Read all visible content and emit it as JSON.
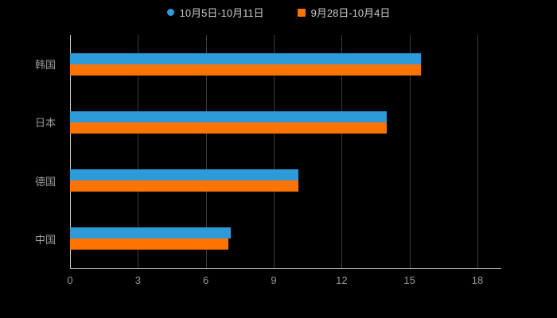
{
  "chart_data": {
    "type": "bar",
    "orientation": "horizontal",
    "title": "",
    "xlabel": "",
    "ylabel": "",
    "categories": [
      "韩国",
      "日本",
      "德国",
      "中国"
    ],
    "series": [
      {
        "name": "10月5日-10月11日",
        "color": "#2E9BD8",
        "marker": "circle",
        "values": [
          15.5,
          14,
          10.1,
          7.1
        ]
      },
      {
        "name": "9月28日-10月4日",
        "color": "#FF7300",
        "marker": "square",
        "values": [
          15.5,
          14,
          10.1,
          7.0
        ]
      }
    ],
    "xlim": [
      0,
      18
    ],
    "xticks": [
      0,
      3,
      6,
      9,
      12,
      15,
      18
    ],
    "grid": "on",
    "legend_position": "top",
    "background_color": "#000000",
    "axis_line_color": "#cfcfcf",
    "gridline_color": "#3d3d3d",
    "label_color": "#999999",
    "legend_text_color": "#cccccc"
  }
}
